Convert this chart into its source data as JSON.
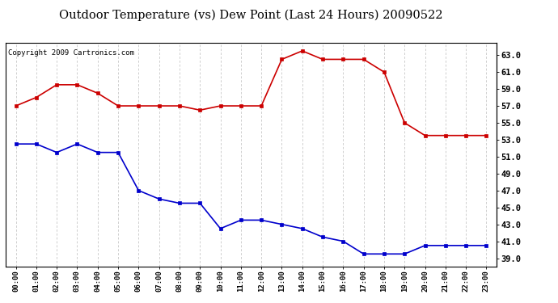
{
  "title": "Outdoor Temperature (vs) Dew Point (Last 24 Hours) 20090522",
  "copyright": "Copyright 2009 Cartronics.com",
  "hours": [
    "00:00",
    "01:00",
    "02:00",
    "03:00",
    "04:00",
    "05:00",
    "06:00",
    "07:00",
    "08:00",
    "09:00",
    "10:00",
    "11:00",
    "12:00",
    "13:00",
    "14:00",
    "15:00",
    "16:00",
    "17:00",
    "18:00",
    "19:00",
    "20:00",
    "21:00",
    "22:00",
    "23:00"
  ],
  "temp": [
    57.0,
    58.0,
    59.5,
    59.5,
    58.5,
    57.0,
    57.0,
    57.0,
    57.0,
    56.5,
    57.0,
    57.0,
    57.0,
    62.5,
    63.5,
    62.5,
    62.5,
    62.5,
    61.0,
    55.0,
    53.5,
    53.5,
    53.5,
    53.5
  ],
  "dew": [
    52.5,
    52.5,
    51.5,
    52.5,
    51.5,
    51.5,
    47.0,
    46.0,
    45.5,
    45.5,
    42.5,
    43.5,
    43.5,
    43.0,
    42.5,
    41.5,
    41.0,
    39.5,
    39.5,
    39.5,
    40.5,
    40.5,
    40.5,
    40.5
  ],
  "temp_color": "#cc0000",
  "dew_color": "#0000cc",
  "bg_color": "#ffffff",
  "plot_bg_color": "#ffffff",
  "grid_color": "#bbbbbb",
  "ylim_min": 38.0,
  "ylim_max": 64.5,
  "yticks": [
    39.0,
    41.0,
    43.0,
    45.0,
    47.0,
    49.0,
    51.0,
    53.0,
    55.0,
    57.0,
    59.0,
    61.0,
    63.0
  ],
  "title_fontsize": 10.5,
  "copyright_fontsize": 6.5,
  "marker": "s",
  "marker_size": 3,
  "linewidth": 1.2
}
